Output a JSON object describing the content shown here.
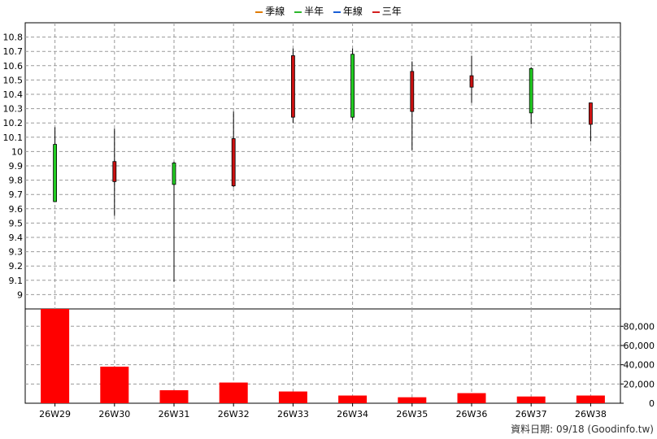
{
  "legend": [
    {
      "label": "季線",
      "color": "#e07b00"
    },
    {
      "label": "半年",
      "color": "#2db82d"
    },
    {
      "label": "年線",
      "color": "#1a5fd6"
    },
    {
      "label": "三年",
      "color": "#d42020"
    }
  ],
  "credit": "資料日期: 09/18  (Goodinfo.tw)",
  "colors": {
    "up": "#22cc22",
    "down": "#cc1111",
    "volume": "#ff0000",
    "grid": "#9a9a9a",
    "wick": "#000000"
  },
  "chart_data": [
    {
      "type": "candlestick",
      "categories": [
        "26W29",
        "26W30",
        "26W31",
        "26W32",
        "26W33",
        "26W34",
        "26W35",
        "26W36",
        "26W37",
        "26W38"
      ],
      "ylim": [
        8.9,
        10.9
      ],
      "yticks": [
        9,
        9.1,
        9.2,
        9.3,
        9.4,
        9.5,
        9.6,
        9.7,
        9.8,
        9.9,
        10,
        10.1,
        10.2,
        10.3,
        10.4,
        10.5,
        10.6,
        10.7,
        10.8
      ],
      "ytick_labels": [
        "9",
        "9.1",
        "9.2",
        "9.3",
        "9.4",
        "9.5",
        "9.6",
        "9.7",
        "9.8",
        "9.9",
        "10",
        "10.1",
        "10.2",
        "10.3",
        "10.4",
        "10.5",
        "10.6",
        "10.7",
        "10.8"
      ],
      "grid": true,
      "candles": [
        {
          "open": 9.65,
          "close": 10.05,
          "high": 10.17,
          "low": 9.65
        },
        {
          "open": 9.93,
          "close": 9.79,
          "high": 10.16,
          "low": 9.55
        },
        {
          "open": 9.77,
          "close": 9.92,
          "high": 9.93,
          "low": 9.09
        },
        {
          "open": 10.09,
          "close": 9.76,
          "high": 10.28,
          "low": 9.75
        },
        {
          "open": 10.67,
          "close": 10.24,
          "high": 10.72,
          "low": 10.2
        },
        {
          "open": 10.24,
          "close": 10.68,
          "high": 10.72,
          "low": 10.22
        },
        {
          "open": 10.56,
          "close": 10.28,
          "high": 10.63,
          "low": 10.01
        },
        {
          "open": 10.53,
          "close": 10.45,
          "high": 10.67,
          "low": 10.34
        },
        {
          "open": 10.27,
          "close": 10.58,
          "high": 10.59,
          "low": 10.19
        },
        {
          "open": 10.34,
          "close": 10.19,
          "high": 10.34,
          "low": 10.07
        }
      ]
    },
    {
      "type": "bar",
      "categories": [
        "26W29",
        "26W30",
        "26W31",
        "26W32",
        "26W33",
        "26W34",
        "26W35",
        "26W36",
        "26W37",
        "26W38"
      ],
      "values": [
        98000,
        38000,
        13500,
        21500,
        12200,
        8000,
        6200,
        10500,
        7000,
        8000
      ],
      "ylim": [
        0,
        98000
      ],
      "yticks": [
        0,
        20000,
        40000,
        60000,
        80000
      ],
      "ytick_labels": [
        "0",
        "20,000",
        "40,000",
        "60,000",
        "80,000"
      ],
      "grid": true
    }
  ]
}
